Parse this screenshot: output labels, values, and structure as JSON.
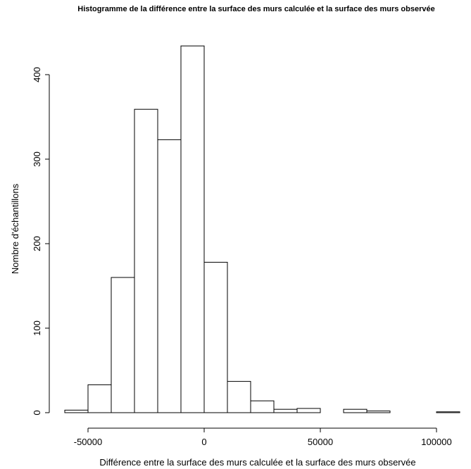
{
  "chart_data": {
    "type": "bar",
    "title": "Histogramme de la différence entre la surface des murs calculée et la surface des murs observée",
    "xlabel": "Différence entre la surface des murs calculée et la surface des murs observée",
    "ylabel": "Nombre d'échantillons",
    "xlim": [
      -60000,
      110000
    ],
    "ylim": [
      0,
      435
    ],
    "x_ticks": [
      -50000,
      0,
      50000,
      100000
    ],
    "x_tick_labels": [
      "-50000",
      "0",
      "50000",
      "100000"
    ],
    "y_ticks": [
      0,
      100,
      200,
      300,
      400
    ],
    "y_tick_labels": [
      "0",
      "100",
      "200",
      "300",
      "400"
    ],
    "bins": [
      {
        "x0": -60000,
        "x1": -50000,
        "count": 3
      },
      {
        "x0": -50000,
        "x1": -40000,
        "count": 33
      },
      {
        "x0": -40000,
        "x1": -30000,
        "count": 160
      },
      {
        "x0": -30000,
        "x1": -20000,
        "count": 359
      },
      {
        "x0": -20000,
        "x1": -10000,
        "count": 323
      },
      {
        "x0": -10000,
        "x1": 0,
        "count": 434
      },
      {
        "x0": 0,
        "x1": 10000,
        "count": 178
      },
      {
        "x0": 10000,
        "x1": 20000,
        "count": 37
      },
      {
        "x0": 20000,
        "x1": 30000,
        "count": 14
      },
      {
        "x0": 30000,
        "x1": 40000,
        "count": 4
      },
      {
        "x0": 40000,
        "x1": 50000,
        "count": 5
      },
      {
        "x0": 50000,
        "x1": 60000,
        "count": 0
      },
      {
        "x0": 60000,
        "x1": 70000,
        "count": 4
      },
      {
        "x0": 70000,
        "x1": 80000,
        "count": 2
      },
      {
        "x0": 80000,
        "x1": 90000,
        "count": 0
      },
      {
        "x0": 90000,
        "x1": 100000,
        "count": 0
      },
      {
        "x0": 100000,
        "x1": 110000,
        "count": 1
      }
    ],
    "grid": false,
    "colors": {
      "bar_fill": "#ffffff",
      "bar_stroke": "#000000"
    }
  }
}
